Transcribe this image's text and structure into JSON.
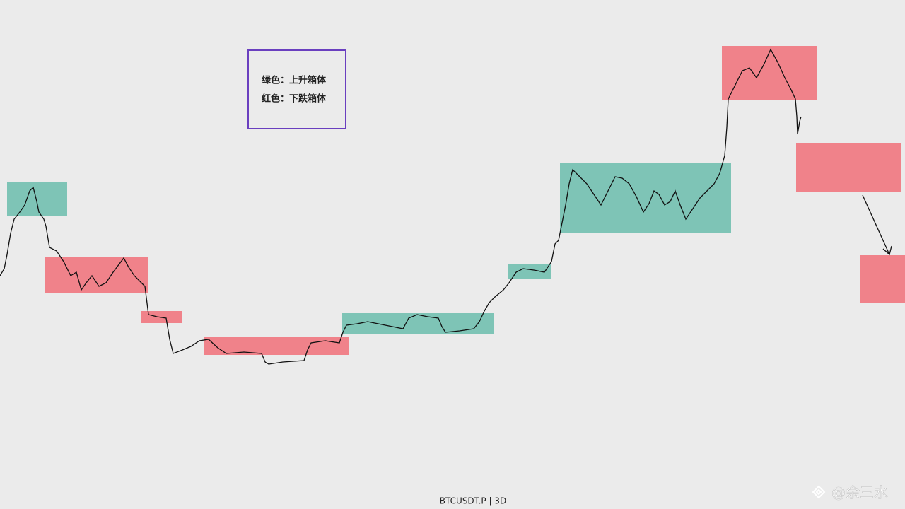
{
  "legend": {
    "items": [
      "绿色：上升箱体",
      "红色：下跌箱体"
    ]
  },
  "footer": {
    "symbol": "BTCUSDT.P | 3D"
  },
  "watermark": "@余三水"
}
